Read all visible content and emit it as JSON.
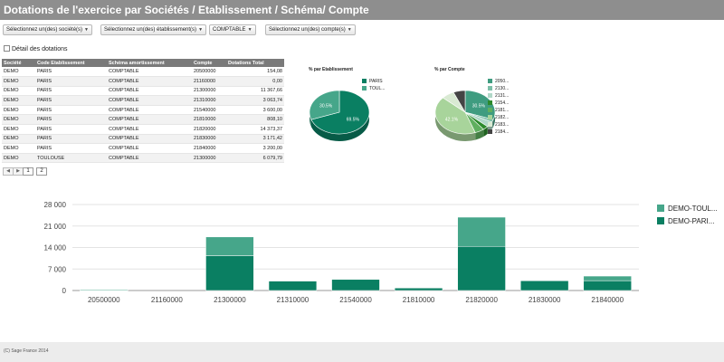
{
  "header": {
    "title": "Dotations de l'exercice par Sociétés / Etablissement / Schéma/ Compte"
  },
  "filters": [
    "Sélectionnez un(des) société(s)",
    "Sélectionnez un(des) établissement(s)",
    "COMPTABLE",
    "Sélectionnez un(des) compte(s)"
  ],
  "detail_label": "Détail des dotations",
  "table": {
    "columns": [
      "Société",
      "Code Etablissement",
      "Schéma amortissement",
      "Compte",
      "Dotations Total"
    ],
    "rows": [
      [
        "DEMO",
        "PARIS",
        "COMPTABLE",
        "20500000",
        "154,08"
      ],
      [
        "DEMO",
        "PARIS",
        "COMPTABLE",
        "21160000",
        "0,00"
      ],
      [
        "DEMO",
        "PARIS",
        "COMPTABLE",
        "21300000",
        "11 367,66"
      ],
      [
        "DEMO",
        "PARIS",
        "COMPTABLE",
        "21310000",
        "3 063,74"
      ],
      [
        "DEMO",
        "PARIS",
        "COMPTABLE",
        "21540000",
        "3 600,00"
      ],
      [
        "DEMO",
        "PARIS",
        "COMPTABLE",
        "21810000",
        "808,10"
      ],
      [
        "DEMO",
        "PARIS",
        "COMPTABLE",
        "21820000",
        "14 373,37"
      ],
      [
        "DEMO",
        "PARIS",
        "COMPTABLE",
        "21830000",
        "3 171,42"
      ],
      [
        "DEMO",
        "PARIS",
        "COMPTABLE",
        "21840000",
        "3 200,00"
      ],
      [
        "DEMO",
        "TOULOUSE",
        "COMPTABLE",
        "21300000",
        "6 079,79"
      ]
    ]
  },
  "pager": {
    "prev_icon": "chevron-left",
    "next_icon": "chevron-right",
    "pages": [
      "1",
      "2"
    ]
  },
  "chart_data": [
    {
      "type": "pie",
      "title": "% par Etablissement",
      "labels": [
        "PARIS",
        "TOUL..."
      ],
      "values": [
        69.5,
        30.5
      ],
      "value_labels": [
        "69.5%",
        "30.5%"
      ],
      "colors": [
        "#0a7f62",
        "#46a68a"
      ]
    },
    {
      "type": "pie",
      "title": "% par Compte",
      "labels": [
        "2050...",
        "2130...",
        "2131...",
        "2154...",
        "2181...",
        "2182...",
        "2183...",
        "2184..."
      ],
      "values": [
        30.5,
        2,
        4,
        3,
        5,
        42.1,
        7,
        6.4
      ],
      "value_labels": [
        "30.5%",
        "",
        "",
        "",
        "",
        "42.1%",
        "",
        ""
      ],
      "colors": [
        "#3f9c80",
        "#7dbfa8",
        "#b0d8c8",
        "#2c8a2c",
        "#5faf5f",
        "#a8d49b",
        "#d9ead3",
        "#444444"
      ]
    },
    {
      "type": "bar",
      "stacked": true,
      "categories": [
        "20500000",
        "21160000",
        "21300000",
        "21310000",
        "21540000",
        "21810000",
        "21820000",
        "21830000",
        "21840000"
      ],
      "series": [
        {
          "name": "DEMO-PARI...",
          "color": "#0a7f62",
          "values": [
            154,
            0,
            11368,
            3064,
            3600,
            808,
            14373,
            3171,
            3200
          ]
        },
        {
          "name": "DEMO-TOUL...",
          "color": "#46a68a",
          "values": [
            200,
            0,
            6080,
            0,
            0,
            0,
            9500,
            0,
            1500
          ]
        }
      ],
      "yticks": [
        "0",
        "7 000",
        "14 000",
        "21 000",
        "28 000"
      ],
      "ylim": [
        0,
        28000
      ],
      "legend": "right",
      "grid": true
    }
  ],
  "footer": "(C) Sage France 2014"
}
